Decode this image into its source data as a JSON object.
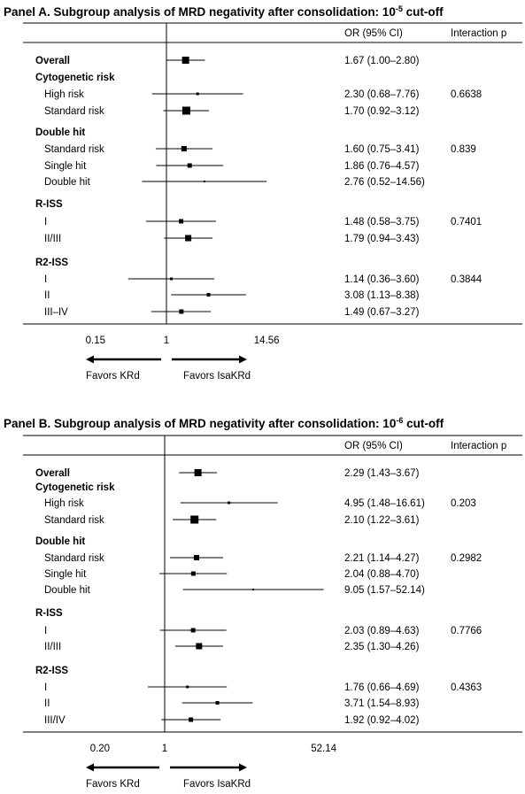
{
  "chart_data": [
    {
      "type": "forest",
      "title": "Panel A. Subgroup analysis of MRD negativity after consolidation: 10",
      "title_superscript": "-5",
      "title_suffix": " cut-off",
      "col_headers": {
        "or": "OR (95% CI)",
        "p": "Interaction p"
      },
      "scale": "log",
      "ticks": [
        {
          "value": 0.15,
          "label": "0.15"
        },
        {
          "value": 1,
          "label": "1"
        },
        {
          "value": 14.56,
          "label": "14.56"
        }
      ],
      "arrows": {
        "left": "Favors KRd",
        "right": "Favors IsaKRd"
      },
      "rows": [
        {
          "label": "Overall",
          "bold": true,
          "indent": false,
          "or": 1.67,
          "lo": 1.0,
          "hi": 2.8,
          "text": "1.67 (1.00–2.80)",
          "p": "",
          "box": 8
        },
        {
          "label": "Cytogenetic risk",
          "bold": true,
          "header": true
        },
        {
          "label": "High risk",
          "indent": true,
          "or": 2.3,
          "lo": 0.68,
          "hi": 7.76,
          "text": "2.30 (0.68–7.76)",
          "p": "0.6638",
          "box": 3
        },
        {
          "label": "Standard risk",
          "indent": true,
          "or": 1.7,
          "lo": 0.92,
          "hi": 3.12,
          "text": "1.70 (0.92–3.12)",
          "p": "",
          "box": 9
        },
        {
          "gap": true
        },
        {
          "label": "Double hit",
          "bold": true,
          "header": true
        },
        {
          "label": "Standard risk",
          "indent": true,
          "or": 1.6,
          "lo": 0.75,
          "hi": 3.41,
          "text": "1.60 (0.75–3.41)",
          "p": "0.839",
          "box": 6
        },
        {
          "label": "Single hit",
          "indent": true,
          "or": 1.86,
          "lo": 0.76,
          "hi": 4.57,
          "text": "1.86 (0.76–4.57)",
          "p": "",
          "box": 5
        },
        {
          "label": "Double hit",
          "indent": true,
          "or": 2.76,
          "lo": 0.52,
          "hi": 14.56,
          "text": "2.76 (0.52–14.56)",
          "p": "",
          "box": 2
        },
        {
          "gap": true
        },
        {
          "label": "R-ISS",
          "bold": true,
          "header": true
        },
        {
          "label": "I",
          "indent": true,
          "or": 1.48,
          "lo": 0.58,
          "hi": 3.75,
          "text": "1.48 (0.58–3.75)",
          "p": "0.7401",
          "box": 5
        },
        {
          "label": "II/III",
          "indent": true,
          "or": 1.79,
          "lo": 0.94,
          "hi": 3.43,
          "text": "1.79 (0.94–3.43)",
          "p": "",
          "box": 7
        },
        {
          "gap": true
        },
        {
          "label": "R2-ISS",
          "bold": true,
          "header": true
        },
        {
          "label": "I",
          "indent": true,
          "or": 1.14,
          "lo": 0.36,
          "hi": 3.6,
          "text": "1.14 (0.36–3.60)",
          "p": "0.3844",
          "box": 3
        },
        {
          "label": "II",
          "indent": true,
          "or": 3.08,
          "lo": 1.13,
          "hi": 8.38,
          "text": "3.08 (1.13–8.38)",
          "p": "",
          "box": 4
        },
        {
          "label": "III–IV",
          "indent": true,
          "or": 1.49,
          "lo": 0.67,
          "hi": 3.27,
          "text": "1.49 (0.67–3.27)",
          "p": "",
          "box": 5
        }
      ]
    },
    {
      "type": "forest",
      "title": "Panel B. Subgroup analysis of MRD negativity after consolidation: 10",
      "title_superscript": "-6",
      "title_suffix": " cut-off",
      "col_headers": {
        "or": "OR (95% CI)",
        "p": "Interaction p"
      },
      "scale": "log",
      "ticks": [
        {
          "value": 0.2,
          "label": "0.20"
        },
        {
          "value": 1,
          "label": "1"
        },
        {
          "value": 52.14,
          "label": "52.14"
        }
      ],
      "arrows": {
        "left": "Favors KRd",
        "right": "Favors IsaKRd"
      },
      "rows": [
        {
          "label": "Overall",
          "bold": true,
          "indent": false,
          "or": 2.29,
          "lo": 1.43,
          "hi": 3.67,
          "text": "2.29 (1.43–3.67)",
          "p": "",
          "box": 8
        },
        {
          "label": "Cytogenetic risk",
          "bold": true,
          "header": true
        },
        {
          "label": "High risk",
          "indent": true,
          "or": 4.95,
          "lo": 1.48,
          "hi": 16.61,
          "text": "4.95 (1.48–16.61)",
          "p": "0.203",
          "box": 3
        },
        {
          "label": "Standard risk",
          "indent": true,
          "or": 2.1,
          "lo": 1.22,
          "hi": 3.61,
          "text": "2.10 (1.22–3.61)",
          "p": "",
          "box": 9
        },
        {
          "gap": true
        },
        {
          "label": "Double hit",
          "bold": true,
          "header": true
        },
        {
          "label": "Standard risk",
          "indent": true,
          "or": 2.21,
          "lo": 1.14,
          "hi": 4.27,
          "text": "2.21 (1.14–4.27)",
          "p": "0.2982",
          "box": 6
        },
        {
          "label": "Single hit",
          "indent": true,
          "or": 2.04,
          "lo": 0.88,
          "hi": 4.7,
          "text": "2.04 (0.88–4.70)",
          "p": "",
          "box": 5
        },
        {
          "label": "Double hit",
          "indent": true,
          "or": 9.05,
          "lo": 1.57,
          "hi": 52.14,
          "text": "9.05 (1.57–52.14)",
          "p": "",
          "box": 2
        },
        {
          "gap": true
        },
        {
          "label": "R-ISS",
          "bold": true,
          "header": true
        },
        {
          "label": "I",
          "indent": true,
          "or": 2.03,
          "lo": 0.89,
          "hi": 4.63,
          "text": "2.03 (0.89–4.63)",
          "p": "0.7766",
          "box": 5
        },
        {
          "label": "II/III",
          "indent": true,
          "or": 2.35,
          "lo": 1.3,
          "hi": 4.26,
          "text": "2.35 (1.30–4.26)",
          "p": "",
          "box": 7
        },
        {
          "gap": true
        },
        {
          "label": "R2-ISS",
          "bold": true,
          "header": true
        },
        {
          "label": "I",
          "indent": true,
          "or": 1.76,
          "lo": 0.66,
          "hi": 4.69,
          "text": "1.76 (0.66–4.69)",
          "p": "0.4363",
          "box": 3
        },
        {
          "label": "II",
          "indent": true,
          "or": 3.71,
          "lo": 1.54,
          "hi": 8.93,
          "text": "3.71 (1.54–8.93)",
          "p": "",
          "box": 4
        },
        {
          "label": "III/IV",
          "indent": true,
          "or": 1.92,
          "lo": 0.92,
          "hi": 4.02,
          "text": "1.92 (0.92–4.02)",
          "p": "",
          "box": 5
        }
      ]
    }
  ]
}
